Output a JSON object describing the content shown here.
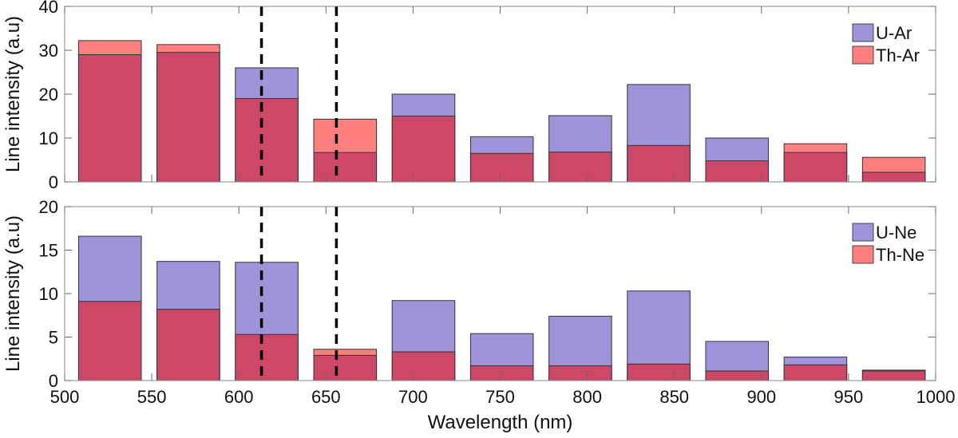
{
  "chart_data": {
    "type": "bar",
    "xlabel": "Wavelength (nm)",
    "xlim": [
      500,
      1000
    ],
    "xticks": [
      500,
      550,
      600,
      650,
      700,
      750,
      800,
      850,
      900,
      950,
      1000
    ],
    "bar_centers_nm": [
      526,
      571,
      616,
      661,
      706,
      751,
      796,
      841,
      886,
      931,
      976
    ],
    "bar_width_nm": 36,
    "dashed_lines_nm": [
      613,
      656
    ],
    "colors": {
      "blue": "#9d94da",
      "red": "#ff7f7f",
      "overlap": "#cc4866"
    },
    "panels": [
      {
        "ylabel": "Line intensity (a.u)",
        "ylim": [
          0,
          40
        ],
        "yticks": [
          0,
          10,
          20,
          30,
          40
        ],
        "legend_position": "top-right",
        "series": [
          {
            "name": "U-Ar",
            "color": "blue",
            "values": [
              29,
              29.5,
              26,
              6.7,
              20,
              10.3,
              15.1,
              22.2,
              10,
              6.7,
              2.2
            ]
          },
          {
            "name": "Th-Ar",
            "color": "red",
            "values": [
              32.2,
              31.3,
              19,
              14.3,
              15,
              6.5,
              6.8,
              8.3,
              4.8,
              8.7,
              5.6
            ]
          }
        ]
      },
      {
        "ylabel": "Line intensity (a.u)",
        "ylim": [
          0,
          20
        ],
        "yticks": [
          0,
          5,
          10,
          15,
          20
        ],
        "legend_position": "top-right",
        "series": [
          {
            "name": "U-Ne",
            "color": "blue",
            "values": [
              16.6,
              13.7,
              13.6,
              2.9,
              9.2,
              5.4,
              7.4,
              10.3,
              4.5,
              2.7,
              1.1
            ]
          },
          {
            "name": "Th-Ne",
            "color": "red",
            "values": [
              9.1,
              8.2,
              5.3,
              3.6,
              3.3,
              1.7,
              1.7,
              1.9,
              1.1,
              1.8,
              1.2
            ]
          }
        ]
      }
    ]
  }
}
